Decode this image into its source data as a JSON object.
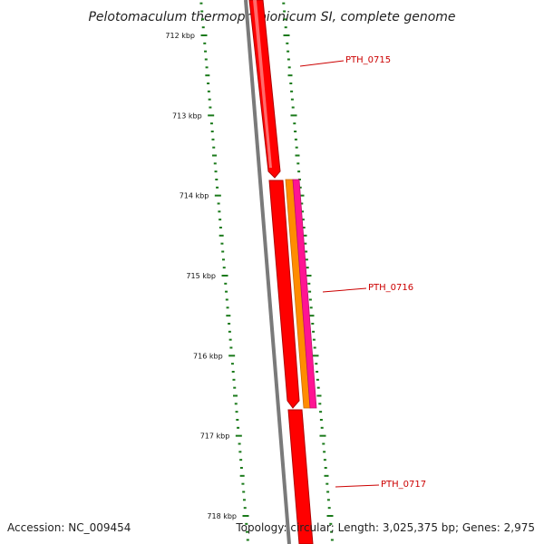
{
  "title": "Pelotomaculum thermopropionicum SI, complete genome",
  "footer": {
    "accession": "Accession: NC_009454",
    "topology": "Topology: circular; Length: 3,025,375 bp; Genes: 2,975"
  },
  "colors": {
    "backbone": "#7a7a7a",
    "tick": "#1a7a1a",
    "gene_primary": "#ff0000",
    "gene_secondary": "#ff8c00",
    "gene_tertiary": "#ff1493",
    "label": "#cc0000"
  },
  "axis": {
    "unit": "kbp",
    "ticks": [
      {
        "value": 712,
        "label": "712 kbp"
      },
      {
        "value": 713,
        "label": "713 kbp"
      },
      {
        "value": 714,
        "label": "714 kbp"
      },
      {
        "value": 715,
        "label": "715 kbp"
      },
      {
        "value": 716,
        "label": "716 kbp"
      },
      {
        "value": 717,
        "label": "717 kbp"
      },
      {
        "value": 718,
        "label": "718 kbp"
      }
    ]
  },
  "genes": [
    {
      "name": "PTH_0715",
      "label": "PTH_0715"
    },
    {
      "name": "PTH_0716",
      "label": "PTH_0716"
    },
    {
      "name": "PTH_0717",
      "label": "PTH_0717"
    }
  ]
}
